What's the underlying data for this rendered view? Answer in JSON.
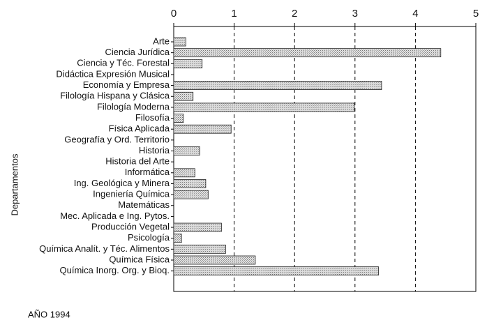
{
  "chart_data": {
    "type": "hbar",
    "ylabel": "Departamentos",
    "footer": "AÑO 1994",
    "categories": [
      "Arte",
      "Ciencia Jurídica",
      "Ciencia y Téc. Forestal",
      "Didáctica Expresión Musical",
      "Economía y Empresa",
      "Filología Hispana y Clásica",
      "Filología Moderna",
      "Filosofía",
      "Física Aplicada",
      "Geografía y Ord. Territorio",
      "Historia",
      "Historia del Arte",
      "Informática",
      "Ing. Geológica y Minera",
      "Ingeniería Química",
      "Matemáticas",
      "Mec. Aplicada e Ing. Pytos.",
      "Producción Vegetal",
      "Psicología",
      "Química Analít. y Téc. Alimentos",
      "Química Física",
      "Química Inorg. Org. y Bioq."
    ],
    "values": [
      0.2,
      4.42,
      0.47,
      0,
      3.44,
      0.32,
      2.99,
      0.16,
      0.95,
      0,
      0.43,
      0,
      0.35,
      0.53,
      0.57,
      0,
      0,
      0.79,
      0.13,
      0.86,
      1.35,
      3.39
    ],
    "color": "#c4c4c4",
    "xlim": [
      0,
      5
    ],
    "xticks": [
      0,
      1,
      2,
      3,
      4,
      5
    ],
    "grid": true
  }
}
